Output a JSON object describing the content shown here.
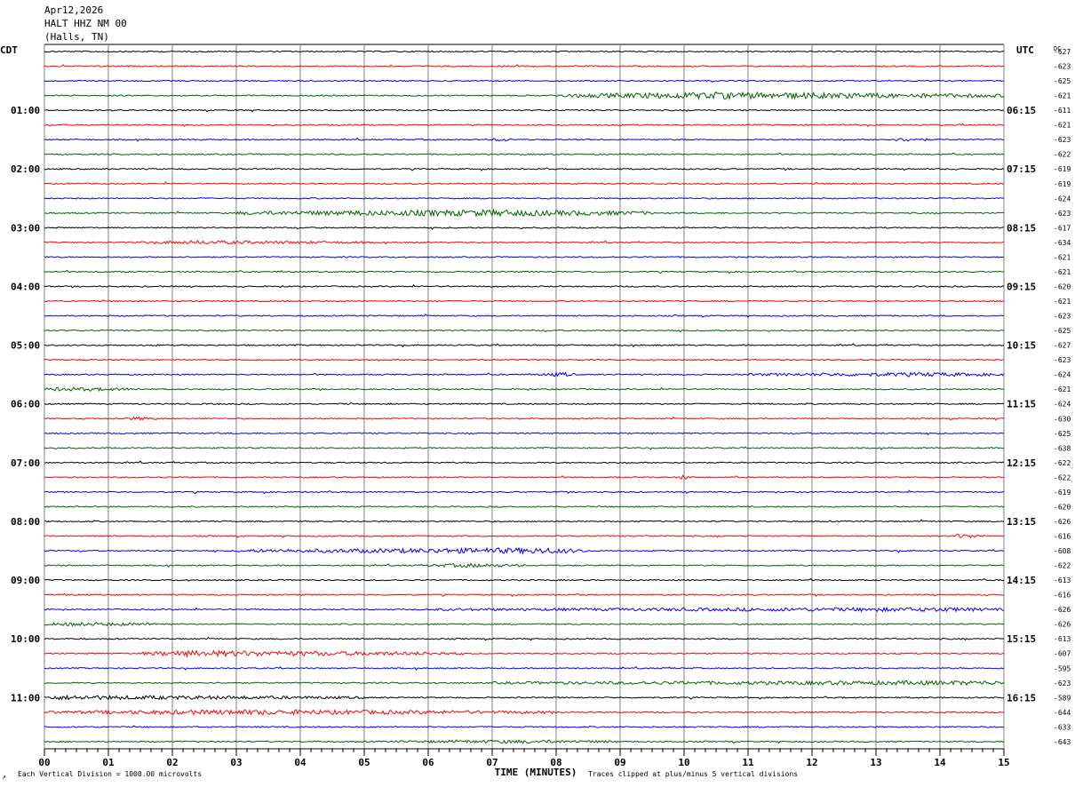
{
  "header": {
    "date": "Apr12,2026",
    "station": "HALT HHZ NM 00",
    "location": "(Halls, TN)"
  },
  "left_axis_label": "CDT",
  "right_axis_label": "UTC",
  "dc_label": "DC",
  "footer": {
    "scale_note": "Each Vertical Division = 1000.00 microvolts",
    "clip_note": "Traces clipped at plus/minus 5 vertical divisions",
    "corner_mark": "↗"
  },
  "colors": {
    "black": "#000000",
    "red": "#ff0000",
    "blue": "#0000ff",
    "green": "#006400",
    "grid": "#808080"
  },
  "chart_data": {
    "type": "line",
    "title": "",
    "xlabel": "TIME (MINUTES)",
    "xlim": [
      0,
      15
    ],
    "x_ticks": [
      "00",
      "01",
      "02",
      "03",
      "04",
      "05",
      "06",
      "07",
      "08",
      "09",
      "10",
      "11",
      "12",
      "13",
      "14",
      "15"
    ],
    "trace_minutes": 15,
    "trace_colors": [
      "black",
      "red",
      "blue",
      "green"
    ],
    "left_hour_labels": [
      "01:00",
      "02:00",
      "03:00",
      "04:00",
      "05:00",
      "06:00",
      "07:00",
      "08:00",
      "09:00",
      "10:00",
      "11:00"
    ],
    "right_hour_labels": [
      "06:15",
      "07:15",
      "08:15",
      "09:15",
      "10:15",
      "11:15",
      "12:15",
      "13:15",
      "14:15",
      "15:15",
      "16:15"
    ],
    "dc_offsets": [
      "-627",
      "-623",
      "-625",
      "-621",
      "-611",
      "-621",
      "-623",
      "-622",
      "-619",
      "-619",
      "-624",
      "-623",
      "-617",
      "-634",
      "-621",
      "-621",
      "-620",
      "-621",
      "-623",
      "-625",
      "-627",
      "-623",
      "-624",
      "-621",
      "-624",
      "-630",
      "-625",
      "-638",
      "-622",
      "-622",
      "-619",
      "-620",
      "-626",
      "-616",
      "-608",
      "-622",
      "-613",
      "-616",
      "-626",
      "-626",
      "-613",
      "-607",
      "-595",
      "-623",
      "-589",
      "-644",
      "-633",
      "-643"
    ],
    "events": [
      {
        "trace": 3,
        "start_min": 8.0,
        "end_min": 15.0,
        "peak_min": 10.5,
        "amplitude": 3.2
      },
      {
        "trace": 6,
        "start_min": 7.0,
        "end_min": 7.3,
        "peak_min": 7.15,
        "amplitude": 1.6
      },
      {
        "trace": 6,
        "start_min": 13.3,
        "end_min": 13.8,
        "peak_min": 13.5,
        "amplitude": 1.6
      },
      {
        "trace": 11,
        "start_min": 3.0,
        "end_min": 9.5,
        "peak_min": 7.0,
        "amplitude": 3.0
      },
      {
        "trace": 13,
        "start_min": 1.5,
        "end_min": 5.0,
        "peak_min": 2.3,
        "amplitude": 1.4
      },
      {
        "trace": 22,
        "start_min": 7.8,
        "end_min": 8.3,
        "peak_min": 8.1,
        "amplitude": 1.8
      },
      {
        "trace": 22,
        "start_min": 11.0,
        "end_min": 15.0,
        "peak_min": 13.8,
        "amplitude": 1.7
      },
      {
        "trace": 23,
        "start_min": 0.0,
        "end_min": 1.5,
        "peak_min": 0.2,
        "amplitude": 1.6
      },
      {
        "trace": 25,
        "start_min": 1.2,
        "end_min": 1.8,
        "peak_min": 1.5,
        "amplitude": 1.3
      },
      {
        "trace": 29,
        "start_min": 9.9,
        "end_min": 10.1,
        "peak_min": 10.0,
        "amplitude": 2.0
      },
      {
        "trace": 33,
        "start_min": 14.2,
        "end_min": 14.7,
        "peak_min": 14.3,
        "amplitude": 2.0
      },
      {
        "trace": 34,
        "start_min": 3.0,
        "end_min": 8.5,
        "peak_min": 7.8,
        "amplitude": 2.6
      },
      {
        "trace": 35,
        "start_min": 6.0,
        "end_min": 7.5,
        "peak_min": 6.6,
        "amplitude": 1.5
      },
      {
        "trace": 38,
        "start_min": 6.0,
        "end_min": 15.0,
        "peak_min": 14.2,
        "amplitude": 1.6
      },
      {
        "trace": 39,
        "start_min": 0.0,
        "end_min": 2.0,
        "peak_min": 0.5,
        "amplitude": 1.5
      },
      {
        "trace": 41,
        "start_min": 1.5,
        "end_min": 6.5,
        "peak_min": 2.2,
        "amplitude": 2.6
      },
      {
        "trace": 43,
        "start_min": 7.0,
        "end_min": 15.0,
        "peak_min": 14.8,
        "amplitude": 1.8
      },
      {
        "trace": 44,
        "start_min": 0.0,
        "end_min": 5.0,
        "peak_min": 0.2,
        "amplitude": 1.8
      },
      {
        "trace": 45,
        "start_min": 0.0,
        "end_min": 8.0,
        "peak_min": 3.0,
        "amplitude": 2.2
      },
      {
        "trace": 47,
        "start_min": 5.5,
        "end_min": 9.0,
        "peak_min": 7.5,
        "amplitude": 1.2
      }
    ]
  }
}
